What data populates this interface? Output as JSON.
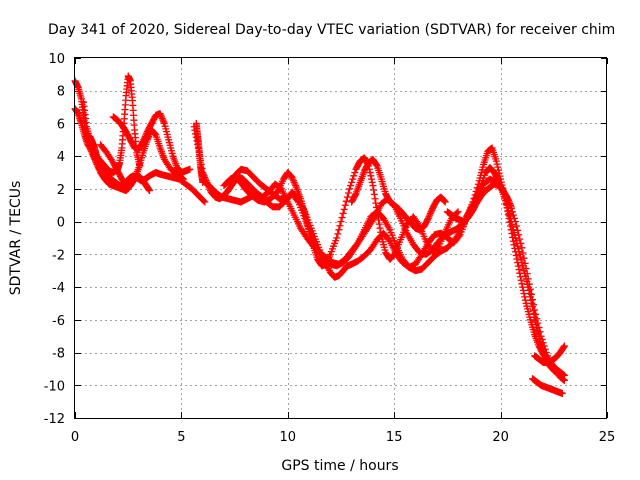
{
  "chart_data": {
    "type": "scatter",
    "title": "Day 341 of 2020, Sidereal Day-to-day VTEC variation (SDTVAR) for receiver chim",
    "xlabel": "GPS time / hours",
    "ylabel": "SDTVAR / TECUs",
    "xlim": [
      0,
      25
    ],
    "ylim": [
      -12,
      10
    ],
    "xticks": [
      0,
      5,
      10,
      15,
      20,
      25
    ],
    "yticks": [
      -12,
      -10,
      -8,
      -6,
      -4,
      -2,
      0,
      2,
      4,
      6,
      8,
      10
    ],
    "grid": true,
    "marker": "+",
    "color": "#ff0000",
    "series": [
      {
        "name": "track-1",
        "x": [
          0.0,
          0.15,
          0.3,
          0.4,
          0.5,
          0.7,
          0.9,
          1.1,
          1.3,
          1.5,
          1.7,
          1.9,
          2.1,
          2.3,
          2.45,
          2.6,
          2.75,
          2.9,
          3.1,
          3.3,
          3.5,
          3.8,
          4.0,
          4.3,
          4.6,
          4.9,
          5.2,
          5.5,
          5.8,
          6.1
        ],
        "y": [
          8.6,
          8.2,
          7.5,
          6.5,
          5.5,
          4.5,
          3.9,
          3.3,
          3.0,
          2.9,
          2.6,
          2.4,
          2.2,
          2.3,
          2.5,
          2.7,
          2.8,
          2.7,
          2.5,
          2.6,
          2.8,
          3.0,
          2.9,
          2.8,
          2.7,
          2.6,
          2.3,
          2.0,
          1.6,
          1.2
        ]
      },
      {
        "name": "track-2",
        "x": [
          0.0,
          0.15,
          0.3,
          0.45,
          0.6,
          0.8,
          1.0,
          1.2,
          1.4,
          1.6,
          1.8,
          2.0,
          2.1,
          2.2,
          2.3,
          2.4,
          2.5,
          2.6,
          2.7,
          2.8,
          2.9,
          3.05
        ],
        "y": [
          6.9,
          6.6,
          6.0,
          5.3,
          4.7,
          4.4,
          4.0,
          3.7,
          3.4,
          3.1,
          3.0,
          3.2,
          3.6,
          4.5,
          6.0,
          7.7,
          8.9,
          8.6,
          7.4,
          5.6,
          4.2,
          3.4
        ]
      },
      {
        "name": "track-3",
        "x": [
          0.4,
          0.55,
          0.7,
          0.85,
          1.0,
          1.2,
          1.4,
          1.6,
          1.8,
          2.0,
          2.2,
          2.4,
          2.6,
          2.8,
          3.0,
          3.2,
          3.35,
          3.5
        ],
        "y": [
          7.3,
          5.8,
          5.0,
          4.3,
          3.6,
          3.0,
          2.6,
          2.3,
          2.2,
          2.1,
          2.0,
          1.9,
          2.2,
          2.6,
          2.8,
          2.5,
          2.2,
          1.9
        ]
      },
      {
        "name": "track-4",
        "x": [
          1.8,
          2.0,
          2.2,
          2.4,
          2.6,
          2.8,
          3.0,
          3.2,
          3.4,
          3.6,
          3.8,
          4.0,
          4.2,
          4.4,
          4.6,
          4.8,
          5.0,
          5.2,
          5.4
        ],
        "y": [
          6.4,
          6.2,
          5.9,
          5.5,
          5.0,
          4.5,
          4.4,
          4.9,
          5.5,
          6.0,
          6.5,
          6.6,
          6.0,
          5.0,
          4.0,
          3.3,
          3.0,
          3.1,
          3.2
        ]
      },
      {
        "name": "track-5",
        "x": [
          1.2,
          1.5,
          1.8,
          2.0,
          2.2,
          2.4,
          2.6,
          2.8,
          3.0,
          3.2,
          3.4,
          3.6,
          3.8,
          4.0,
          4.2,
          4.5,
          4.8,
          5.1
        ],
        "y": [
          4.7,
          4.2,
          3.6,
          3.1,
          2.6,
          2.3,
          2.2,
          2.6,
          3.3,
          4.2,
          5.0,
          5.6,
          5.3,
          4.5,
          3.8,
          3.2,
          2.9,
          2.6
        ]
      },
      {
        "name": "track-6",
        "x": [
          5.6,
          5.8,
          6.0,
          6.2,
          6.4,
          6.6,
          6.8,
          7.0,
          7.2,
          7.4,
          7.6,
          7.8,
          8.0,
          8.3,
          8.6,
          8.9,
          9.2,
          9.5,
          9.8,
          10.0,
          10.2,
          10.4,
          10.6,
          10.8,
          11.0,
          11.2,
          11.4,
          11.6,
          11.8,
          12.0,
          12.3,
          12.6,
          12.9,
          13.2,
          13.4,
          13.6,
          13.8,
          14.0,
          14.2,
          14.4,
          14.6,
          14.8,
          15.0,
          15.3,
          15.6,
          15.9,
          16.2,
          16.5,
          16.8,
          17.1,
          17.4,
          17.7,
          18.0
        ],
        "y": [
          5.8,
          4.5,
          3.0,
          2.4,
          1.8,
          1.5,
          1.4,
          1.6,
          1.9,
          2.3,
          2.6,
          2.4,
          2.0,
          1.6,
          1.3,
          1.2,
          1.4,
          1.8,
          2.6,
          3.0,
          2.7,
          2.1,
          1.4,
          0.5,
          -0.6,
          -1.5,
          -2.3,
          -2.7,
          -2.6,
          -2.0,
          -1.0,
          0.5,
          2.0,
          3.2,
          3.7,
          3.9,
          3.4,
          2.2,
          0.6,
          -0.9,
          -1.9,
          -2.3,
          -2.0,
          -1.1,
          -0.2,
          0.3,
          -0.3,
          -1.2,
          -1.8,
          -1.5,
          -0.6,
          0.2,
          0.6
        ]
      },
      {
        "name": "track-7",
        "x": [
          6.0,
          6.3,
          6.6,
          6.9,
          7.2,
          7.5,
          7.8,
          8.1,
          8.4,
          8.7,
          9.0,
          9.3,
          9.6,
          9.9,
          10.2,
          10.5,
          10.8,
          11.1,
          11.4,
          11.7,
          12.0,
          12.2,
          12.4,
          12.6,
          12.8,
          13.0,
          13.3,
          13.6,
          13.9,
          14.2,
          14.5,
          14.8,
          15.1,
          15.4,
          15.7,
          16.0,
          16.3,
          16.6,
          16.9,
          17.2,
          17.5,
          17.8,
          18.1,
          18.4,
          18.7,
          19.0,
          19.2,
          19.4,
          19.6,
          19.8,
          20.0,
          20.2,
          20.4,
          20.6,
          20.8,
          21.0,
          21.2,
          21.4,
          21.6,
          21.8,
          22.0,
          22.2,
          22.4,
          22.6,
          22.8,
          23.0
        ],
        "y": [
          2.5,
          2.2,
          1.8,
          1.5,
          1.4,
          1.3,
          1.2,
          1.4,
          1.6,
          1.5,
          1.2,
          0.9,
          0.9,
          1.3,
          1.8,
          1.4,
          0.6,
          -0.4,
          -1.4,
          -2.4,
          -3.1,
          -3.4,
          -3.3,
          -3.0,
          -2.7,
          -2.6,
          -2.4,
          -2.1,
          -1.7,
          -1.1,
          -0.7,
          -1.2,
          -2.0,
          -2.5,
          -2.8,
          -2.6,
          -2.0,
          -1.3,
          -0.8,
          -0.7,
          -1.0,
          -1.3,
          -0.8,
          0.2,
          1.2,
          2.5,
          3.5,
          4.3,
          4.5,
          3.7,
          2.6,
          1.5,
          0.2,
          -1.2,
          -2.5,
          -3.8,
          -5.0,
          -6.0,
          -6.9,
          -7.6,
          -8.1,
          -8.4,
          -8.7,
          -9.0,
          -9.2,
          -9.4
        ]
      },
      {
        "name": "track-8",
        "x": [
          7.0,
          7.3,
          7.6,
          7.9,
          8.2,
          8.5,
          8.8,
          9.1,
          9.4,
          9.7,
          10.0,
          10.3,
          10.6,
          10.9,
          11.2,
          11.5,
          11.8,
          12.1,
          12.4,
          12.7,
          13.0,
          13.3,
          13.6,
          13.9,
          14.2,
          14.5,
          14.8,
          15.1,
          15.4,
          15.7,
          16.0,
          16.3,
          16.6,
          16.9,
          17.2,
          17.5,
          17.8,
          18.1,
          18.4,
          18.7,
          19.0,
          19.3,
          19.5,
          19.7,
          19.9,
          20.1,
          20.3,
          20.5,
          20.7,
          20.9,
          21.1,
          21.3,
          21.5,
          21.7,
          21.9,
          22.1,
          22.3,
          22.5,
          22.7,
          22.9
        ],
        "y": [
          2.2,
          2.6,
          2.8,
          2.6,
          2.2,
          1.8,
          1.5,
          1.8,
          2.3,
          2.0,
          1.2,
          0.4,
          -0.4,
          -1.0,
          -1.5,
          -1.9,
          -2.2,
          -2.5,
          -2.6,
          -2.3,
          -1.8,
          -1.3,
          -0.5,
          0.3,
          0.6,
          0.2,
          -0.5,
          -1.5,
          -2.3,
          -2.8,
          -3.0,
          -2.9,
          -2.5,
          -2.1,
          -1.8,
          -1.6,
          -1.2,
          -0.6,
          0.2,
          1.0,
          2.0,
          3.0,
          3.3,
          3.0,
          2.5,
          1.8,
          1.0,
          0.0,
          -1.0,
          -2.0,
          -3.0,
          -4.0,
          -5.2,
          -6.5,
          -7.5,
          -8.3,
          -8.8,
          -9.1,
          -9.3,
          -9.4
        ]
      },
      {
        "name": "track-9",
        "x": [
          7.5,
          7.8,
          8.1,
          8.4,
          8.7,
          9.0,
          9.3,
          9.6,
          9.9,
          10.2,
          10.5,
          10.8,
          11.1,
          11.4,
          11.7,
          12.0,
          12.3,
          12.6,
          12.9,
          13.2,
          13.5,
          13.8,
          14.1,
          14.4,
          14.7,
          15.0,
          15.3,
          15.6,
          15.9,
          16.2,
          16.5,
          16.8,
          17.1,
          17.4,
          17.7,
          18.0,
          18.3,
          18.6,
          18.9,
          19.2,
          19.5,
          19.8,
          20.1,
          20.4,
          20.7,
          21.0,
          21.3,
          21.6,
          21.9,
          22.2,
          22.5,
          22.8,
          23.0
        ],
        "y": [
          2.8,
          3.2,
          3.1,
          2.7,
          2.3,
          2.0,
          1.7,
          1.4,
          1.3,
          1.7,
          1.2,
          0.2,
          -0.8,
          -1.7,
          -2.3,
          -2.6,
          -2.7,
          -2.5,
          -2.1,
          -1.5,
          -0.9,
          -0.3,
          0.3,
          1.1,
          1.4,
          1.0,
          0.2,
          -0.7,
          -1.4,
          -1.9,
          -2.0,
          -1.7,
          -1.2,
          -0.8,
          -0.6,
          -0.4,
          0.1,
          0.8,
          1.6,
          2.3,
          2.6,
          2.4,
          2.0,
          1.2,
          0.0,
          -1.6,
          -3.5,
          -5.4,
          -7.0,
          -8.2,
          -9.0,
          -9.5,
          -9.7
        ]
      },
      {
        "name": "track-10",
        "x": [
          13.0,
          13.2,
          13.4,
          13.6,
          13.8,
          14.0,
          14.2,
          14.4,
          14.6,
          14.8,
          15.0,
          15.2,
          15.4,
          15.6,
          15.8,
          16.0,
          16.2,
          16.4,
          16.6,
          16.8,
          17.0,
          17.2,
          17.4
        ],
        "y": [
          1.2,
          1.7,
          2.4,
          3.1,
          3.6,
          3.8,
          3.4,
          2.6,
          1.7,
          1.2,
          1.0,
          0.8,
          0.5,
          0.2,
          -0.1,
          -0.4,
          -0.5,
          -0.3,
          0.2,
          0.8,
          1.3,
          1.5,
          1.2
        ]
      },
      {
        "name": "track-11",
        "x": [
          17.5,
          17.7,
          17.9,
          18.1,
          18.3,
          18.5,
          18.7,
          18.9,
          19.1,
          19.3,
          19.5,
          19.7,
          19.9,
          20.1,
          20.3,
          20.5
        ],
        "y": [
          0.6,
          0.4,
          0.2,
          0.1,
          0.0,
          0.3,
          0.7,
          1.2,
          1.6,
          1.9,
          2.1,
          2.3,
          2.2,
          1.9,
          1.5,
          0.9
        ]
      },
      {
        "name": "track-12",
        "x": [
          21.5,
          21.7,
          21.9,
          22.1,
          22.3,
          22.5,
          22.7,
          22.9
        ],
        "y": [
          -9.6,
          -9.8,
          -10.0,
          -10.1,
          -10.2,
          -10.3,
          -10.4,
          -10.5
        ]
      },
      {
        "name": "track-13",
        "x": [
          21.6,
          21.8,
          22.0,
          22.2,
          22.4,
          22.6,
          22.8,
          23.0
        ],
        "y": [
          -8.2,
          -8.4,
          -8.6,
          -8.6,
          -8.5,
          -8.3,
          -8.0,
          -7.6
        ]
      },
      {
        "name": "track-14",
        "x": [
          5.7,
          5.75,
          5.8,
          5.85,
          5.9,
          5.95,
          6.0
        ],
        "y": [
          6.0,
          5.4,
          4.8,
          4.1,
          3.4,
          2.9,
          2.4
        ]
      },
      {
        "name": "track-15",
        "x": [
          0.7,
          0.8,
          0.9,
          1.0,
          1.1,
          1.3,
          1.5,
          1.7,
          1.9,
          2.1,
          2.3,
          2.5
        ],
        "y": [
          5.2,
          4.9,
          4.6,
          4.1,
          3.6,
          3.2,
          2.8,
          2.5,
          2.3,
          2.2,
          2.1,
          2.0
        ]
      }
    ]
  }
}
